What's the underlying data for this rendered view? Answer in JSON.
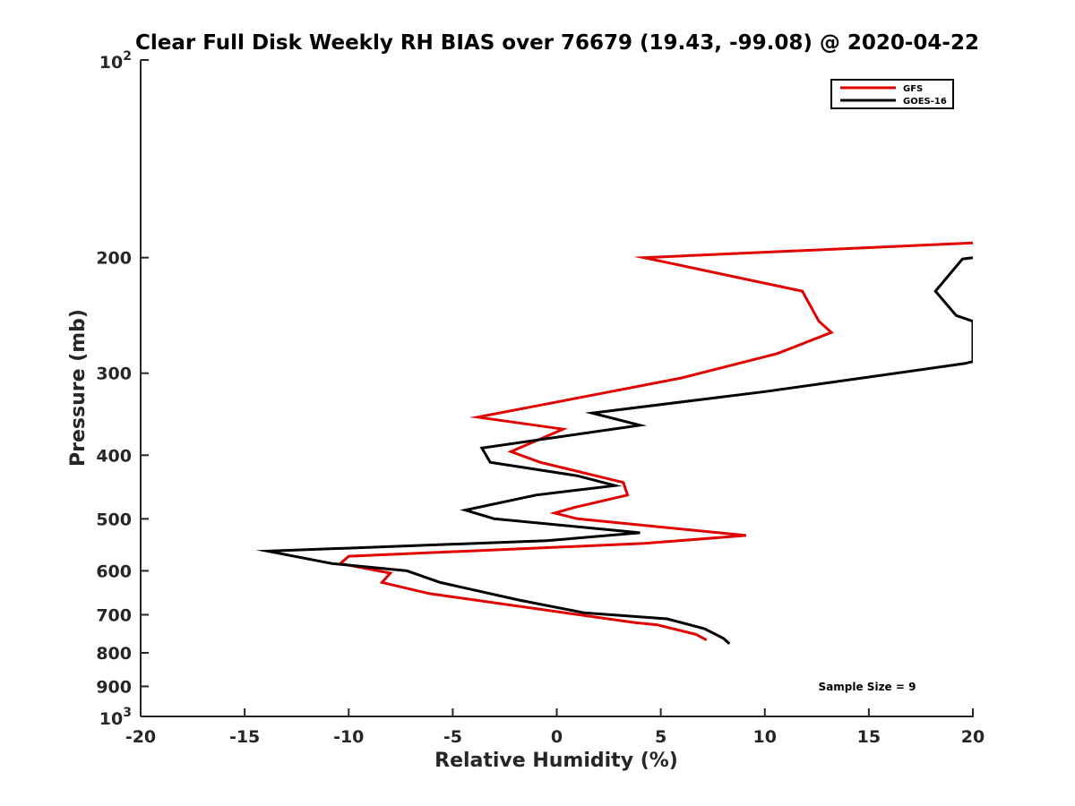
{
  "chart_data": {
    "type": "line",
    "title": "Clear Full Disk Weekly RH BIAS over 76679 (19.43, -99.08) @ 2020-04-22",
    "xlabel": "Relative Humidity (%)",
    "ylabel": "Pressure (mb)",
    "xlim": [
      -20,
      20
    ],
    "ylim": [
      100,
      1000
    ],
    "y_scale": "log",
    "y_reversed": true,
    "grid": false,
    "legend_position": "top-right",
    "x_ticks": [
      "-20",
      "-15",
      "-10",
      "-5",
      "0",
      "5",
      "10",
      "15",
      "20"
    ],
    "y_ticks": [
      {
        "value": 100,
        "base": "10",
        "exp": "2"
      },
      {
        "value": 200,
        "label": "200"
      },
      {
        "value": 300,
        "label": "300"
      },
      {
        "value": 400,
        "label": "400"
      },
      {
        "value": 500,
        "label": "500"
      },
      {
        "value": 600,
        "label": "600"
      },
      {
        "value": 700,
        "label": "700"
      },
      {
        "value": 800,
        "label": "800"
      },
      {
        "value": 900,
        "label": "900"
      },
      {
        "value": 1000,
        "base": "10",
        "exp": "3"
      }
    ],
    "series": [
      {
        "name": "GFS",
        "color": "#e00000",
        "points": [
          [
            20.0,
            190
          ],
          [
            4.2,
            200
          ],
          [
            11.8,
            225
          ],
          [
            12.6,
            250
          ],
          [
            13.2,
            260
          ],
          [
            10.6,
            280
          ],
          [
            6.0,
            305
          ],
          [
            1.5,
            325
          ],
          [
            -3.8,
            350
          ],
          [
            0.3,
            365
          ],
          [
            -2.2,
            395
          ],
          [
            -0.8,
            410
          ],
          [
            3.2,
            440
          ],
          [
            3.4,
            460
          ],
          [
            0.9,
            480
          ],
          [
            -0.1,
            490
          ],
          [
            1.0,
            500
          ],
          [
            9.1,
            530
          ],
          [
            4.2,
            545
          ],
          [
            -10.0,
            570
          ],
          [
            -10.4,
            585
          ],
          [
            -8.0,
            605
          ],
          [
            -8.4,
            625
          ],
          [
            -6.1,
            650
          ],
          [
            3.8,
            720
          ],
          [
            4.8,
            725
          ],
          [
            6.7,
            750
          ],
          [
            7.2,
            765
          ]
        ]
      },
      {
        "name": "GOES-16",
        "color": "#000000",
        "points": [
          [
            20.0,
            200
          ],
          [
            19.5,
            201
          ],
          [
            18.2,
            225
          ],
          [
            19.2,
            245
          ],
          [
            20.0,
            250
          ],
          [
            20.0,
            288
          ],
          [
            19.6,
            290
          ],
          [
            14.7,
            305
          ],
          [
            10.0,
            320
          ],
          [
            1.7,
            345
          ],
          [
            4.0,
            360
          ],
          [
            -3.6,
            390
          ],
          [
            -3.2,
            410
          ],
          [
            1.0,
            430
          ],
          [
            2.8,
            445
          ],
          [
            -1.0,
            460
          ],
          [
            -4.4,
            485
          ],
          [
            -3.0,
            500
          ],
          [
            4.0,
            525
          ],
          [
            -0.5,
            540
          ],
          [
            -13.9,
            560
          ],
          [
            -10.8,
            585
          ],
          [
            -7.2,
            600
          ],
          [
            -5.6,
            625
          ],
          [
            -1.8,
            665
          ],
          [
            1.3,
            695
          ],
          [
            5.3,
            710
          ],
          [
            7.1,
            735
          ],
          [
            8.0,
            760
          ],
          [
            8.3,
            775
          ]
        ]
      }
    ],
    "annotations": [
      {
        "text": "Sample Size = 9"
      }
    ]
  }
}
